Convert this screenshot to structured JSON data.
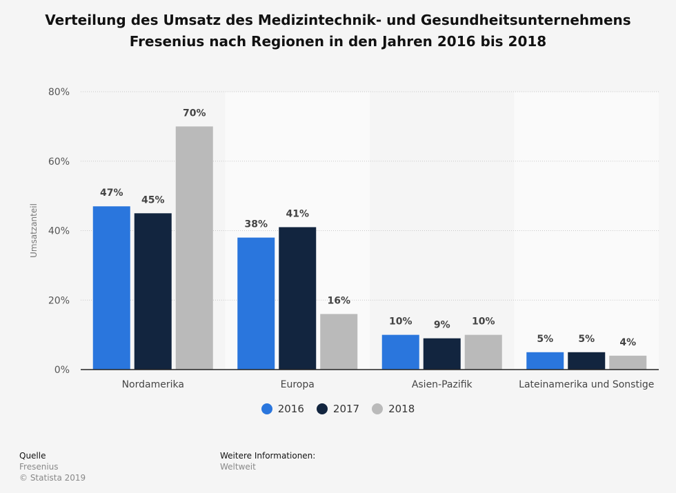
{
  "chart_data": {
    "type": "bar",
    "title": "Verteilung des Umsatz des Medizintechnik- und Gesundheitsunternehmens Fresenius nach Regionen in den Jahren 2016 bis 2018",
    "xlabel": "",
    "ylabel": "Umsatzanteil",
    "categories": [
      "Nordamerika",
      "Europa",
      "Asien-Pazifik",
      "Lateinamerika und Sonstige"
    ],
    "series": [
      {
        "name": "2016",
        "values": [
          47,
          38,
          10,
          5
        ],
        "labels": [
          "47%",
          "38%",
          "10%",
          "5%"
        ],
        "color": "#2a76dd"
      },
      {
        "name": "2017",
        "values": [
          45,
          41,
          9,
          5
        ],
        "labels": [
          "45%",
          "41%",
          "9%",
          "5%"
        ],
        "color": "#12253f"
      },
      {
        "name": "2018",
        "values": [
          70,
          16,
          10,
          4
        ],
        "labels": [
          "70%",
          "16%",
          "10%",
          "4%"
        ],
        "color": "#bababa"
      }
    ],
    "yticks": [
      0,
      20,
      40,
      60,
      80
    ],
    "ytick_labels": [
      "0%",
      "20%",
      "40%",
      "60%",
      "80%"
    ],
    "ylim": [
      0,
      80
    ],
    "grid": true,
    "legend_position": "bottom-center"
  },
  "footer": {
    "source_heading": "Quelle",
    "source_name": "Fresenius",
    "copyright": "© Statista 2019",
    "info_heading": "Weitere Informationen:",
    "info_value": "Weltweit"
  }
}
